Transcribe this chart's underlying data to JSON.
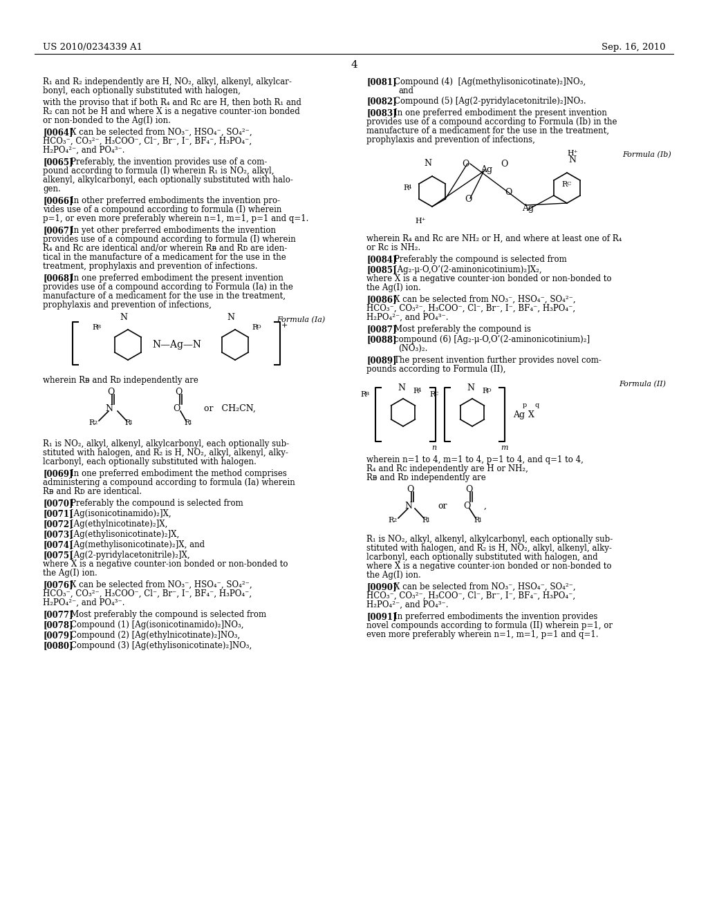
{
  "bg_color": "#ffffff",
  "header_left": "US 2010/0234339 A1",
  "header_right": "Sep. 16, 2010",
  "page_number": "4",
  "figsize": [
    10.24,
    13.2
  ],
  "dpi": 100
}
